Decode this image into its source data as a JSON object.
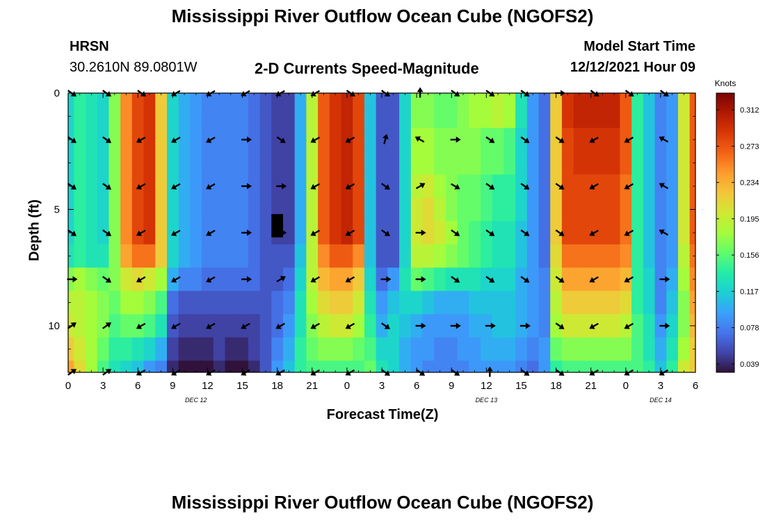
{
  "page": {
    "title": "Mississippi River Outflow Ocean Cube (NGOFS2)",
    "bottom_title": "Mississippi River Outflow Ocean Cube (NGOFS2)",
    "station": "HRSN",
    "coords": "30.2610N  89.0801W",
    "subtitle": "2-D Currents Speed-Magnitude",
    "model_label": "Model Start Time",
    "model_time": "12/12/2021 Hour 09"
  },
  "colors": {
    "colormap": [
      "#30123b",
      "#4145ab",
      "#4675ed",
      "#39a2fc",
      "#1bcfd4",
      "#24eca6",
      "#61fc6c",
      "#a4fc3b",
      "#d1e834",
      "#f3c63a",
      "#fe9b2d",
      "#f36315",
      "#d93806",
      "#b11901",
      "#7a0402"
    ],
    "arrow": "#000000",
    "masked": "#000000"
  },
  "chart_data": {
    "type": "heatmap",
    "title": "2-D Currents Speed-Magnitude",
    "xlabel": "Forecast Time(Z)",
    "ylabel": "Depth (ft)",
    "x_hours_since_start": [
      0,
      1,
      2,
      3,
      4,
      5,
      6,
      7,
      8,
      9,
      10,
      11,
      12,
      13,
      14,
      15,
      16,
      17,
      18,
      19,
      20,
      21,
      22,
      23,
      24,
      25,
      26,
      27,
      28,
      29,
      30,
      31,
      32,
      33,
      34,
      35,
      36,
      37,
      38,
      39,
      40,
      41,
      42,
      43,
      44,
      45,
      46,
      47,
      48,
      49,
      50,
      51,
      52,
      53,
      54
    ],
    "xlim": [
      0,
      54
    ],
    "ylim": [
      0,
      12
    ],
    "x_tick_labels": [
      "0",
      "3",
      "6",
      "9",
      "12",
      "15",
      "18",
      "21",
      "0",
      "3",
      "6",
      "9",
      "12",
      "15",
      "18",
      "21",
      "0",
      "3",
      "6"
    ],
    "y_tick_labels": [
      "0",
      "5",
      "10"
    ],
    "y_ticks": [
      0,
      5,
      10
    ],
    "date_labels": [
      {
        "text": "DEC 12",
        "hour": 11
      },
      {
        "text": "DEC 13",
        "hour": 36
      },
      {
        "text": "DEC 14",
        "hour": 51
      }
    ],
    "depth_rows_ft": [
      0,
      1,
      2,
      3,
      4,
      5,
      6,
      7,
      8,
      9,
      10,
      11,
      12
    ],
    "speed_knots_by_depth": [
      [
        0.12,
        0.14,
        0.13,
        0.12,
        0.17,
        0.25,
        0.28,
        0.29,
        0.22,
        0.12,
        0.1,
        0.09,
        0.08,
        0.08,
        0.08,
        0.08,
        0.07,
        0.06,
        0.05,
        0.05,
        0.1,
        0.19,
        0.27,
        0.29,
        0.3,
        0.28,
        0.11,
        0.06,
        0.06,
        0.12,
        0.17,
        0.17,
        0.16,
        0.16,
        0.17,
        0.18,
        0.18,
        0.19,
        0.18,
        0.13,
        0.09,
        0.07,
        0.22,
        0.29,
        0.3,
        0.3,
        0.3,
        0.3,
        0.27,
        0.14,
        0.11,
        0.08,
        0.09,
        0.2,
        0.27
      ],
      [
        0.12,
        0.14,
        0.13,
        0.12,
        0.17,
        0.25,
        0.28,
        0.29,
        0.22,
        0.12,
        0.1,
        0.09,
        0.08,
        0.08,
        0.08,
        0.08,
        0.07,
        0.06,
        0.05,
        0.05,
        0.1,
        0.19,
        0.27,
        0.29,
        0.3,
        0.28,
        0.11,
        0.06,
        0.06,
        0.12,
        0.17,
        0.17,
        0.16,
        0.16,
        0.17,
        0.18,
        0.18,
        0.19,
        0.18,
        0.13,
        0.09,
        0.07,
        0.22,
        0.29,
        0.3,
        0.3,
        0.3,
        0.3,
        0.27,
        0.14,
        0.11,
        0.08,
        0.09,
        0.2,
        0.27
      ],
      [
        0.12,
        0.14,
        0.13,
        0.12,
        0.17,
        0.25,
        0.28,
        0.29,
        0.22,
        0.12,
        0.1,
        0.09,
        0.08,
        0.08,
        0.08,
        0.08,
        0.07,
        0.06,
        0.05,
        0.05,
        0.1,
        0.19,
        0.27,
        0.29,
        0.3,
        0.28,
        0.11,
        0.06,
        0.06,
        0.12,
        0.18,
        0.18,
        0.17,
        0.17,
        0.17,
        0.17,
        0.16,
        0.16,
        0.15,
        0.12,
        0.09,
        0.07,
        0.22,
        0.28,
        0.29,
        0.29,
        0.29,
        0.29,
        0.27,
        0.14,
        0.11,
        0.08,
        0.09,
        0.2,
        0.27
      ],
      [
        0.12,
        0.14,
        0.13,
        0.12,
        0.17,
        0.25,
        0.28,
        0.29,
        0.22,
        0.12,
        0.1,
        0.09,
        0.08,
        0.08,
        0.08,
        0.08,
        0.07,
        0.06,
        0.05,
        0.05,
        0.1,
        0.19,
        0.27,
        0.29,
        0.3,
        0.28,
        0.11,
        0.06,
        0.06,
        0.12,
        0.18,
        0.18,
        0.17,
        0.17,
        0.17,
        0.17,
        0.16,
        0.16,
        0.15,
        0.12,
        0.09,
        0.07,
        0.22,
        0.28,
        0.29,
        0.29,
        0.29,
        0.29,
        0.27,
        0.14,
        0.11,
        0.08,
        0.09,
        0.2,
        0.27
      ],
      [
        0.12,
        0.14,
        0.13,
        0.12,
        0.17,
        0.25,
        0.28,
        0.29,
        0.22,
        0.12,
        0.1,
        0.09,
        0.08,
        0.08,
        0.08,
        0.08,
        0.07,
        0.06,
        0.05,
        0.05,
        0.1,
        0.19,
        0.27,
        0.29,
        0.3,
        0.28,
        0.11,
        0.06,
        0.06,
        0.12,
        0.19,
        0.2,
        0.18,
        0.17,
        0.16,
        0.16,
        0.15,
        0.14,
        0.14,
        0.12,
        0.09,
        0.07,
        0.22,
        0.28,
        0.28,
        0.28,
        0.28,
        0.28,
        0.26,
        0.14,
        0.11,
        0.08,
        0.09,
        0.2,
        0.27
      ],
      [
        0.12,
        0.14,
        0.13,
        0.12,
        0.17,
        0.25,
        0.28,
        0.29,
        0.22,
        0.12,
        0.1,
        0.09,
        0.08,
        0.08,
        0.08,
        0.08,
        0.07,
        0.06,
        0.05,
        0.05,
        0.1,
        0.19,
        0.27,
        0.29,
        0.3,
        0.28,
        0.11,
        0.06,
        0.06,
        0.12,
        0.2,
        0.21,
        0.19,
        0.17,
        0.16,
        0.16,
        0.15,
        0.14,
        0.14,
        0.12,
        0.09,
        0.07,
        0.22,
        0.28,
        0.28,
        0.28,
        0.28,
        0.28,
        0.26,
        0.14,
        0.11,
        0.08,
        0.09,
        0.2,
        0.27
      ],
      [
        0.12,
        0.14,
        0.13,
        0.12,
        0.17,
        0.25,
        0.28,
        0.29,
        0.22,
        0.12,
        0.1,
        0.09,
        0.08,
        0.08,
        0.08,
        0.08,
        0.07,
        0.06,
        0.05,
        0.05,
        0.1,
        0.19,
        0.27,
        0.29,
        0.3,
        0.28,
        0.11,
        0.06,
        0.06,
        0.12,
        0.2,
        0.21,
        0.2,
        0.18,
        0.16,
        0.15,
        0.14,
        0.13,
        0.13,
        0.11,
        0.09,
        0.07,
        0.22,
        0.28,
        0.28,
        0.28,
        0.28,
        0.28,
        0.26,
        0.14,
        0.11,
        0.08,
        0.09,
        0.2,
        0.27
      ],
      [
        0.13,
        0.14,
        0.13,
        0.13,
        0.17,
        0.24,
        0.26,
        0.26,
        0.22,
        0.12,
        0.1,
        0.09,
        0.08,
        0.08,
        0.08,
        0.08,
        0.07,
        0.06,
        0.06,
        0.06,
        0.11,
        0.19,
        0.25,
        0.27,
        0.27,
        0.25,
        0.11,
        0.06,
        0.06,
        0.12,
        0.19,
        0.19,
        0.18,
        0.17,
        0.16,
        0.15,
        0.14,
        0.13,
        0.13,
        0.11,
        0.09,
        0.07,
        0.21,
        0.26,
        0.26,
        0.26,
        0.26,
        0.26,
        0.25,
        0.14,
        0.11,
        0.08,
        0.09,
        0.19,
        0.26
      ],
      [
        0.17,
        0.18,
        0.17,
        0.16,
        0.17,
        0.2,
        0.21,
        0.2,
        0.18,
        0.1,
        0.08,
        0.08,
        0.07,
        0.07,
        0.07,
        0.07,
        0.07,
        0.06,
        0.06,
        0.07,
        0.12,
        0.19,
        0.23,
        0.24,
        0.24,
        0.22,
        0.12,
        0.07,
        0.09,
        0.13,
        0.16,
        0.15,
        0.14,
        0.13,
        0.13,
        0.13,
        0.12,
        0.12,
        0.12,
        0.1,
        0.09,
        0.08,
        0.2,
        0.24,
        0.24,
        0.24,
        0.24,
        0.24,
        0.23,
        0.14,
        0.12,
        0.08,
        0.1,
        0.18,
        0.25
      ],
      [
        0.19,
        0.19,
        0.18,
        0.17,
        0.16,
        0.18,
        0.18,
        0.17,
        0.15,
        0.07,
        0.06,
        0.06,
        0.06,
        0.06,
        0.06,
        0.06,
        0.06,
        0.06,
        0.07,
        0.08,
        0.13,
        0.18,
        0.21,
        0.22,
        0.22,
        0.2,
        0.13,
        0.09,
        0.11,
        0.12,
        0.12,
        0.11,
        0.1,
        0.1,
        0.1,
        0.11,
        0.11,
        0.11,
        0.11,
        0.1,
        0.09,
        0.08,
        0.19,
        0.22,
        0.22,
        0.22,
        0.22,
        0.22,
        0.21,
        0.14,
        0.12,
        0.08,
        0.11,
        0.17,
        0.24
      ],
      [
        0.2,
        0.19,
        0.18,
        0.17,
        0.15,
        0.16,
        0.16,
        0.15,
        0.13,
        0.06,
        0.05,
        0.05,
        0.05,
        0.05,
        0.05,
        0.05,
        0.05,
        0.06,
        0.07,
        0.09,
        0.13,
        0.17,
        0.19,
        0.2,
        0.2,
        0.18,
        0.14,
        0.1,
        0.12,
        0.11,
        0.1,
        0.09,
        0.09,
        0.09,
        0.09,
        0.1,
        0.1,
        0.11,
        0.11,
        0.1,
        0.09,
        0.08,
        0.18,
        0.2,
        0.2,
        0.2,
        0.2,
        0.2,
        0.19,
        0.15,
        0.13,
        0.09,
        0.12,
        0.17,
        0.23
      ],
      [
        0.22,
        0.2,
        0.18,
        0.16,
        0.14,
        0.14,
        0.13,
        0.12,
        0.1,
        0.05,
        0.04,
        0.04,
        0.04,
        0.05,
        0.04,
        0.04,
        0.05,
        0.06,
        0.08,
        0.1,
        0.14,
        0.16,
        0.17,
        0.17,
        0.17,
        0.16,
        0.15,
        0.12,
        0.12,
        0.1,
        0.09,
        0.09,
        0.08,
        0.08,
        0.09,
        0.09,
        0.1,
        0.1,
        0.1,
        0.09,
        0.08,
        0.09,
        0.16,
        0.17,
        0.17,
        0.17,
        0.17,
        0.17,
        0.17,
        0.15,
        0.13,
        0.1,
        0.13,
        0.18,
        0.22
      ],
      [
        0.24,
        0.21,
        0.18,
        0.15,
        0.13,
        0.12,
        0.11,
        0.09,
        0.08,
        0.04,
        0.03,
        0.03,
        0.03,
        0.04,
        0.03,
        0.03,
        0.04,
        0.06,
        0.09,
        0.11,
        0.14,
        0.15,
        0.15,
        0.15,
        0.15,
        0.15,
        0.16,
        0.13,
        0.12,
        0.1,
        0.09,
        0.08,
        0.08,
        0.08,
        0.08,
        0.09,
        0.09,
        0.09,
        0.09,
        0.08,
        0.07,
        0.09,
        0.14,
        0.15,
        0.15,
        0.15,
        0.15,
        0.15,
        0.15,
        0.15,
        0.14,
        0.11,
        0.14,
        0.2,
        0.22
      ]
    ],
    "masked_cells": [
      {
        "hour": 18,
        "depth_ft": 6
      }
    ],
    "vector_arrows": {
      "hours": [
        0,
        3,
        6,
        9,
        12,
        15,
        18,
        21,
        24,
        27,
        30,
        33,
        36,
        39,
        42,
        45,
        48,
        51
      ],
      "depths_ft": [
        0,
        2,
        4,
        6,
        8,
        10,
        12
      ],
      "direction_deg_by_depth": [
        [
          -35,
          -35,
          -35,
          -150,
          -150,
          -150,
          -150,
          -150,
          -35,
          -35,
          90,
          -35,
          -35,
          -35,
          0,
          -35,
          -35,
          -35
        ],
        [
          -35,
          -35,
          -150,
          -150,
          -150,
          0,
          -35,
          -150,
          -150,
          75,
          150,
          0,
          -35,
          -35,
          -35,
          -150,
          -150,
          150
        ],
        [
          -35,
          -35,
          -150,
          -150,
          -150,
          0,
          0,
          -150,
          -150,
          -35,
          30,
          -30,
          -35,
          -35,
          -35,
          -150,
          -150,
          150
        ],
        [
          -35,
          -35,
          -150,
          -150,
          -150,
          0,
          0,
          -150,
          -150,
          -35,
          0,
          -35,
          -35,
          -35,
          -35,
          -150,
          -150,
          150
        ],
        [
          0,
          -35,
          -150,
          -150,
          -150,
          0,
          30,
          -150,
          -150,
          0,
          0,
          -35,
          -35,
          -35,
          -35,
          -150,
          -150,
          0
        ],
        [
          35,
          35,
          -150,
          -150,
          -150,
          -150,
          -150,
          -150,
          -150,
          -35,
          0,
          0,
          0,
          0,
          -35,
          -150,
          -150,
          0
        ],
        [
          35,
          35,
          -150,
          -150,
          -150,
          -150,
          -150,
          -150,
          -150,
          -35,
          -35,
          -35,
          90,
          -35,
          -35,
          -150,
          -150,
          -150
        ]
      ]
    },
    "colorbar": {
      "label": "Knots",
      "min": 0.03,
      "max": 0.33,
      "tick_values": [
        0.039,
        0.078,
        0.117,
        0.156,
        0.195,
        0.234,
        0.273,
        0.312
      ],
      "tick_labels": [
        "0.039",
        "0.078",
        "0.117",
        "0.156",
        "0.195",
        "0.234",
        "0.273",
        "0.312"
      ]
    }
  }
}
